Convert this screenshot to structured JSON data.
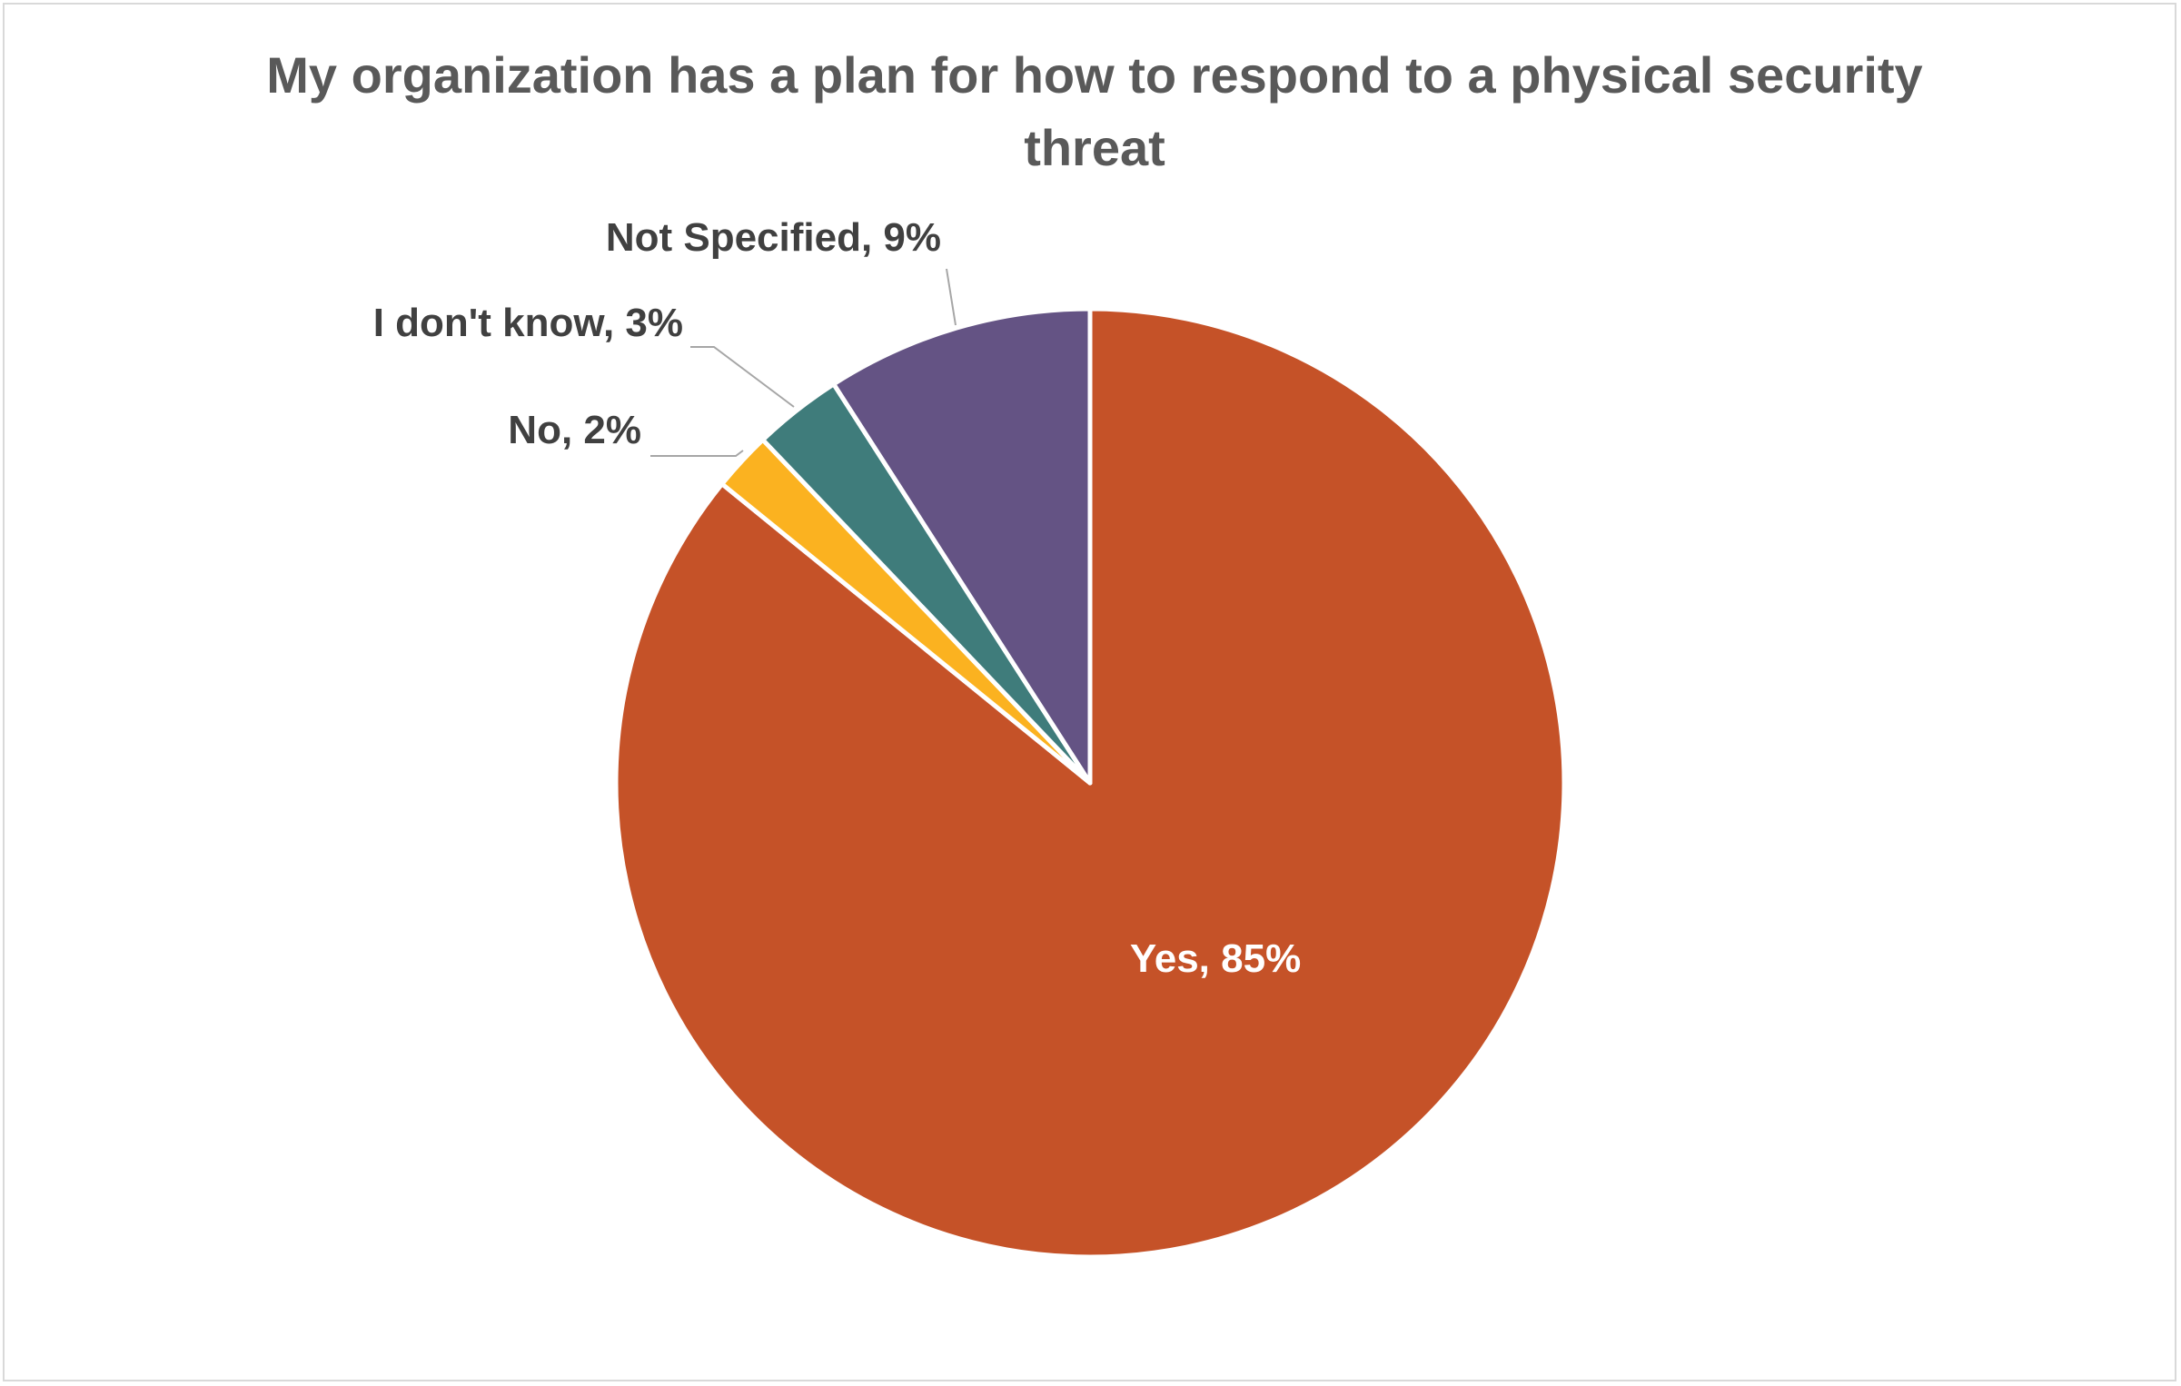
{
  "chart_data": {
    "type": "pie",
    "title": "My organization has a plan for how to respond to a physical security threat",
    "categories": [
      "Yes",
      "No",
      "I don't know",
      "Not Specified"
    ],
    "values": [
      85,
      2,
      3,
      9
    ],
    "data_labels": [
      "Yes, 85%",
      "No, 2%",
      "I don't know, 3%",
      "Not Specified, 9%"
    ],
    "colors": [
      "#C55228",
      "#FBB220",
      "#3F7C7B",
      "#645384"
    ],
    "label_colors": [
      "#ffffff",
      "#404040",
      "#404040",
      "#404040"
    ],
    "leader_line_color": "#A6A6A6",
    "start_angle_deg": 0,
    "direction": "clockwise"
  }
}
